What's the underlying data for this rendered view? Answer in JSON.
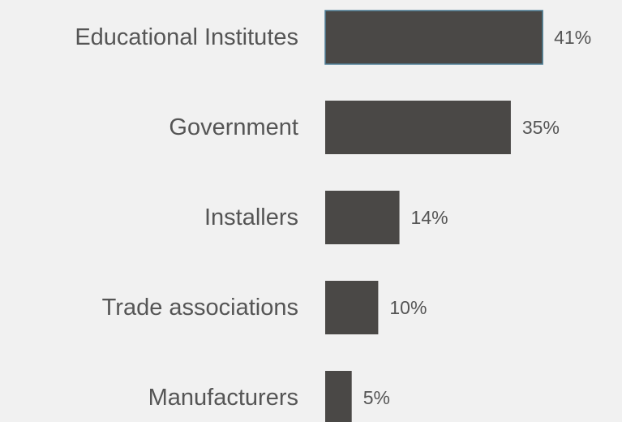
{
  "chart_data": {
    "type": "bar",
    "orientation": "horizontal",
    "categories": [
      "Educational Institutes",
      "Government",
      "Installers",
      "Trade associations",
      "Manufacturers"
    ],
    "values": [
      41,
      35,
      14,
      10,
      5
    ],
    "value_labels": [
      "41%",
      "35%",
      "14%",
      "10%",
      "5%"
    ],
    "unit": "%",
    "title": "",
    "xlabel": "",
    "ylabel": "",
    "grid": false,
    "legend": "none",
    "colors": {
      "bar": "#4a4846",
      "highlight_border": "#4f7f97",
      "text": "#555555",
      "background": "#f1f1f1"
    }
  }
}
